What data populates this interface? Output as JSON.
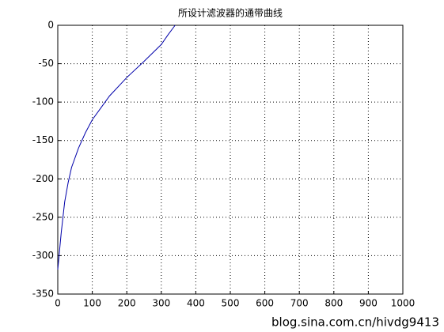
{
  "chart_data": {
    "type": "line",
    "title": "所设计滤波器的通带曲线",
    "x": [
      0,
      10,
      20,
      30,
      40,
      60,
      80,
      100,
      150,
      200,
      250,
      300,
      320,
      340
    ],
    "series": [
      {
        "color": "#0000aa",
        "values": [
          -318,
          -270,
          -230,
          -205,
          -185,
          -160,
          -140,
          -123,
          -92,
          -68,
          -47,
          -25,
          -12,
          0
        ]
      }
    ],
    "xlim": [
      0,
      1000
    ],
    "xticks": [
      0,
      100,
      200,
      300,
      400,
      500,
      600,
      700,
      800,
      900,
      1000
    ],
    "ylim": [
      -350,
      0
    ],
    "yticks": [
      -350,
      -300,
      -250,
      -200,
      -150,
      -100,
      -50,
      0
    ],
    "grid": true,
    "watermark": "blog.sina.com.cn/hivdg9413"
  }
}
